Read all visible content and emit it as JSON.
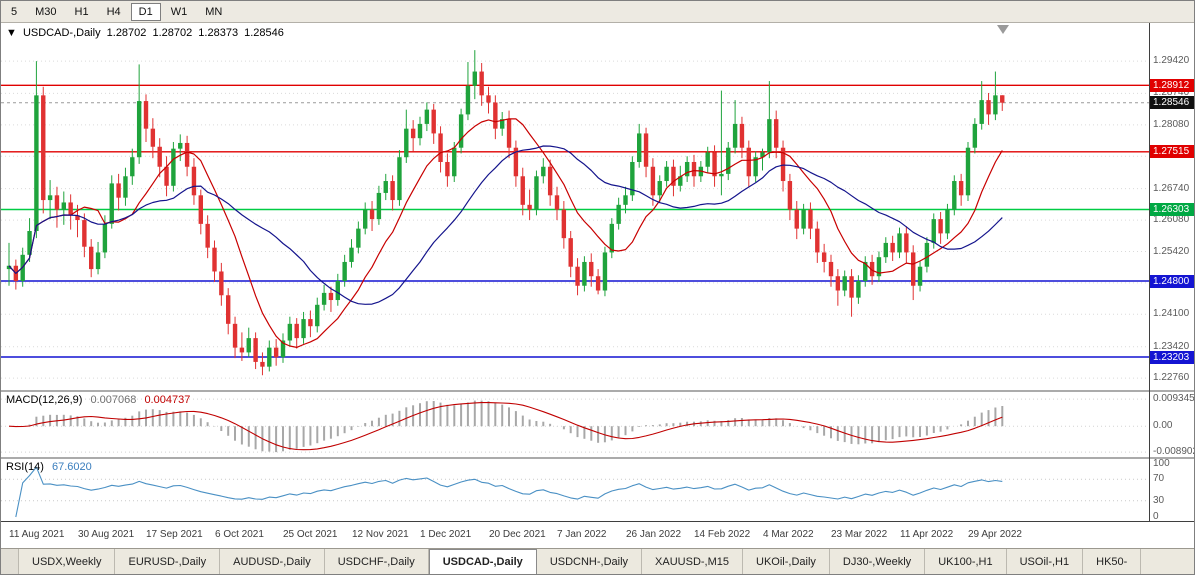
{
  "toolbar": {
    "active": "D1",
    "buttons": [
      "5",
      "M30",
      "H1",
      "H4",
      "D1",
      "W1",
      "MN"
    ]
  },
  "chart": {
    "title": {
      "marker": "▼",
      "symbol": "USDCAD-,Daily",
      "open": "1.28702",
      "high": "1.28702",
      "low": "1.28373",
      "close": "1.28546"
    },
    "colors": {
      "up": "#1FA33C",
      "down": "#E03232",
      "ma_fast": "#C80000",
      "ma_slow": "#14148C",
      "grid": "#DADADA",
      "current": "#9a9a9a"
    },
    "price_axis": [
      {
        "text": "1.29420",
        "price": 1.2942
      },
      {
        "text": "1.28740",
        "price": 1.2874
      },
      {
        "text": "1.28080",
        "price": 1.2808
      },
      {
        "text": "1.27420",
        "price": 1.2742
      },
      {
        "text": "1.26740",
        "price": 1.2674
      },
      {
        "text": "1.26080",
        "price": 1.2608
      },
      {
        "text": "1.25420",
        "price": 1.2542
      },
      {
        "text": "1.24760",
        "price": 1.2476
      },
      {
        "text": "1.24100",
        "price": 1.241
      },
      {
        "text": "1.23420",
        "price": 1.2342
      },
      {
        "text": "1.22760",
        "price": 1.2276
      }
    ],
    "badges": [
      {
        "text": "1.28912",
        "price": 1.28912,
        "color": "#E00000"
      },
      {
        "text": "1.28546",
        "price": 1.28546,
        "color": "#101010"
      },
      {
        "text": "1.27515",
        "price": 1.27515,
        "color": "#E00000"
      },
      {
        "text": "1.26303",
        "price": 1.26303,
        "color": "#00A843"
      },
      {
        "text": "1.24800",
        "price": 1.248,
        "color": "#1414D2"
      },
      {
        "text": "1.23203",
        "price": 1.23203,
        "color": "#1414D2"
      }
    ],
    "hlines": [
      {
        "price": 1.28912,
        "color": "#E00000"
      },
      {
        "price": 1.27515,
        "color": "#E00000"
      },
      {
        "price": 1.26303,
        "color": "#00CC44"
      },
      {
        "price": 1.248,
        "color": "#1414D2"
      },
      {
        "price": 1.23203,
        "color": "#1414D2"
      }
    ],
    "current_price": 1.28546,
    "dates": [
      "11 Aug 2021",
      "30 Aug 2021",
      "17 Sep 2021",
      "6 Oct 2021",
      "25 Oct 2021",
      "12 Nov 2021",
      "1 Dec 2021",
      "20 Dec 2021",
      "7 Jan 2022",
      "26 Jan 2022",
      "14 Feb 2022",
      "4 Mar 2022",
      "23 Mar 2022",
      "11 Apr 2022",
      "29 Apr 2022"
    ],
    "candles": [
      [
        1.2505,
        1.256,
        1.247,
        1.2512
      ],
      [
        1.2512,
        1.2525,
        1.2462,
        1.248
      ],
      [
        1.248,
        1.255,
        1.2468,
        1.2535
      ],
      [
        1.2535,
        1.2612,
        1.252,
        1.2585
      ],
      [
        1.2585,
        1.2942,
        1.257,
        1.287
      ],
      [
        1.287,
        1.2888,
        1.2622,
        1.265
      ],
      [
        1.265,
        1.2692,
        1.261,
        1.266
      ],
      [
        1.266,
        1.2678,
        1.2592,
        1.263
      ],
      [
        1.263,
        1.2668,
        1.2598,
        1.2645
      ],
      [
        1.2645,
        1.2662,
        1.2588,
        1.2618
      ],
      [
        1.2618,
        1.264,
        1.2572,
        1.2608
      ],
      [
        1.2608,
        1.2622,
        1.253,
        1.2552
      ],
      [
        1.2552,
        1.2568,
        1.2488,
        1.2505
      ],
      [
        1.2505,
        1.2562,
        1.2494,
        1.254
      ],
      [
        1.254,
        1.2618,
        1.2528,
        1.26
      ],
      [
        1.26,
        1.2702,
        1.259,
        1.2685
      ],
      [
        1.2685,
        1.2705,
        1.2628,
        1.2655
      ],
      [
        1.2655,
        1.2718,
        1.2638,
        1.27
      ],
      [
        1.27,
        1.2758,
        1.2682,
        1.274
      ],
      [
        1.274,
        1.2935,
        1.2726,
        1.2858
      ],
      [
        1.2858,
        1.2872,
        1.2772,
        1.28
      ],
      [
        1.28,
        1.2822,
        1.2738,
        1.2762
      ],
      [
        1.2762,
        1.278,
        1.2698,
        1.272
      ],
      [
        1.272,
        1.2742,
        1.2658,
        1.268
      ],
      [
        1.268,
        1.2772,
        1.2668,
        1.2758
      ],
      [
        1.2758,
        1.2788,
        1.2732,
        1.277
      ],
      [
        1.277,
        1.2785,
        1.27,
        1.272
      ],
      [
        1.272,
        1.2738,
        1.264,
        1.266
      ],
      [
        1.266,
        1.2672,
        1.2578,
        1.26
      ],
      [
        1.26,
        1.2618,
        1.2528,
        1.255
      ],
      [
        1.255,
        1.2565,
        1.2478,
        1.25
      ],
      [
        1.25,
        1.2518,
        1.2428,
        1.245
      ],
      [
        1.245,
        1.2465,
        1.2368,
        1.239
      ],
      [
        1.239,
        1.2405,
        1.2318,
        1.234
      ],
      [
        1.234,
        1.2372,
        1.2312,
        1.233
      ],
      [
        1.233,
        1.2382,
        1.232,
        1.236
      ],
      [
        1.236,
        1.2372,
        1.2295,
        1.231
      ],
      [
        1.231,
        1.233,
        1.2282,
        1.23
      ],
      [
        1.23,
        1.2355,
        1.229,
        1.234
      ],
      [
        1.234,
        1.2358,
        1.2302,
        1.232
      ],
      [
        1.232,
        1.237,
        1.2308,
        1.2355
      ],
      [
        1.2355,
        1.2405,
        1.2342,
        1.239
      ],
      [
        1.239,
        1.2402,
        1.2338,
        1.236
      ],
      [
        1.236,
        1.2415,
        1.2348,
        1.24
      ],
      [
        1.24,
        1.2418,
        1.2362,
        1.2385
      ],
      [
        1.2385,
        1.2445,
        1.2372,
        1.243
      ],
      [
        1.243,
        1.2472,
        1.2418,
        1.2455
      ],
      [
        1.2455,
        1.2468,
        1.2415,
        1.244
      ],
      [
        1.244,
        1.2495,
        1.2428,
        1.248
      ],
      [
        1.248,
        1.2535,
        1.2468,
        1.252
      ],
      [
        1.252,
        1.2568,
        1.2508,
        1.255
      ],
      [
        1.255,
        1.2605,
        1.2538,
        1.259
      ],
      [
        1.259,
        1.2645,
        1.2578,
        1.263
      ],
      [
        1.263,
        1.2648,
        1.2585,
        1.261
      ],
      [
        1.261,
        1.268,
        1.2598,
        1.2665
      ],
      [
        1.2665,
        1.2705,
        1.265,
        1.269
      ],
      [
        1.269,
        1.2702,
        1.2628,
        1.265
      ],
      [
        1.265,
        1.2755,
        1.2638,
        1.274
      ],
      [
        1.274,
        1.284,
        1.2728,
        1.28
      ],
      [
        1.28,
        1.2818,
        1.2752,
        1.278
      ],
      [
        1.278,
        1.2825,
        1.2765,
        1.281
      ],
      [
        1.281,
        1.2855,
        1.2795,
        1.284
      ],
      [
        1.284,
        1.2852,
        1.2768,
        1.279
      ],
      [
        1.279,
        1.2805,
        1.2708,
        1.273
      ],
      [
        1.273,
        1.2748,
        1.2678,
        1.27
      ],
      [
        1.27,
        1.2772,
        1.2688,
        1.276
      ],
      [
        1.276,
        1.2842,
        1.2748,
        1.283
      ],
      [
        1.283,
        1.294,
        1.2818,
        1.289
      ],
      [
        1.289,
        1.2965,
        1.2862,
        1.292
      ],
      [
        1.292,
        1.2938,
        1.2848,
        1.287
      ],
      [
        1.287,
        1.2888,
        1.2832,
        1.2855
      ],
      [
        1.2855,
        1.287,
        1.2778,
        1.28
      ],
      [
        1.28,
        1.2835,
        1.2785,
        1.282
      ],
      [
        1.282,
        1.2838,
        1.2738,
        1.276
      ],
      [
        1.276,
        1.2775,
        1.2678,
        1.27
      ],
      [
        1.27,
        1.2718,
        1.2618,
        1.264
      ],
      [
        1.264,
        1.2672,
        1.2608,
        1.263
      ],
      [
        1.263,
        1.2712,
        1.2618,
        1.27
      ],
      [
        1.27,
        1.2738,
        1.2685,
        1.272
      ],
      [
        1.272,
        1.2735,
        1.2638,
        1.266
      ],
      [
        1.266,
        1.2678,
        1.2608,
        1.263
      ],
      [
        1.263,
        1.2648,
        1.2548,
        1.257
      ],
      [
        1.257,
        1.2585,
        1.2488,
        1.251
      ],
      [
        1.251,
        1.2528,
        1.245,
        1.247
      ],
      [
        1.247,
        1.2532,
        1.2458,
        1.252
      ],
      [
        1.252,
        1.2538,
        1.2468,
        1.249
      ],
      [
        1.249,
        1.2505,
        1.2452,
        1.246
      ],
      [
        1.246,
        1.2552,
        1.2448,
        1.254
      ],
      [
        1.254,
        1.2612,
        1.2528,
        1.26
      ],
      [
        1.26,
        1.2655,
        1.2588,
        1.264
      ],
      [
        1.264,
        1.2678,
        1.2622,
        1.266
      ],
      [
        1.266,
        1.2742,
        1.2648,
        1.273
      ],
      [
        1.273,
        1.281,
        1.2718,
        1.279
      ],
      [
        1.279,
        1.2802,
        1.2698,
        1.272
      ],
      [
        1.272,
        1.2738,
        1.2638,
        1.266
      ],
      [
        1.266,
        1.2702,
        1.2645,
        1.269
      ],
      [
        1.269,
        1.2732,
        1.2678,
        1.272
      ],
      [
        1.272,
        1.2735,
        1.2658,
        1.268
      ],
      [
        1.268,
        1.2722,
        1.2668,
        1.27
      ],
      [
        1.27,
        1.2742,
        1.2688,
        1.273
      ],
      [
        1.273,
        1.2745,
        1.2678,
        1.27
      ],
      [
        1.27,
        1.2732,
        1.2688,
        1.272
      ],
      [
        1.272,
        1.2762,
        1.2708,
        1.275
      ],
      [
        1.275,
        1.2765,
        1.2678,
        1.27
      ],
      [
        1.27,
        1.288,
        1.266,
        1.2705
      ],
      [
        1.2705,
        1.2772,
        1.2692,
        1.276
      ],
      [
        1.276,
        1.286,
        1.2748,
        1.281
      ],
      [
        1.281,
        1.2825,
        1.2738,
        1.276
      ],
      [
        1.276,
        1.2775,
        1.2678,
        1.27
      ],
      [
        1.27,
        1.2752,
        1.2688,
        1.274
      ],
      [
        1.274,
        1.2758,
        1.2712,
        1.275
      ],
      [
        1.275,
        1.29,
        1.2738,
        1.282
      ],
      [
        1.282,
        1.2838,
        1.2738,
        1.276
      ],
      [
        1.276,
        1.2775,
        1.2668,
        1.269
      ],
      [
        1.269,
        1.2705,
        1.2608,
        1.263
      ],
      [
        1.263,
        1.2648,
        1.2568,
        1.259
      ],
      [
        1.259,
        1.2642,
        1.2578,
        1.263
      ],
      [
        1.263,
        1.2645,
        1.2568,
        1.259
      ],
      [
        1.259,
        1.2605,
        1.2518,
        1.254
      ],
      [
        1.254,
        1.2558,
        1.2498,
        1.252
      ],
      [
        1.252,
        1.2535,
        1.2468,
        1.249
      ],
      [
        1.249,
        1.2505,
        1.2428,
        1.246
      ],
      [
        1.246,
        1.2502,
        1.2448,
        1.249
      ],
      [
        1.249,
        1.2505,
        1.2405,
        1.2445
      ],
      [
        1.2445,
        1.2492,
        1.2432,
        1.248
      ],
      [
        1.248,
        1.2532,
        1.2468,
        1.252
      ],
      [
        1.252,
        1.2535,
        1.2472,
        1.249
      ],
      [
        1.249,
        1.2542,
        1.2478,
        1.253
      ],
      [
        1.253,
        1.2572,
        1.2518,
        1.256
      ],
      [
        1.256,
        1.2575,
        1.2522,
        1.254
      ],
      [
        1.254,
        1.2592,
        1.2528,
        1.258
      ],
      [
        1.258,
        1.2595,
        1.2518,
        1.254
      ],
      [
        1.254,
        1.2555,
        1.244,
        1.247
      ],
      [
        1.247,
        1.2522,
        1.2458,
        1.251
      ],
      [
        1.251,
        1.2572,
        1.2498,
        1.256
      ],
      [
        1.256,
        1.2622,
        1.2548,
        1.261
      ],
      [
        1.261,
        1.2625,
        1.2558,
        1.258
      ],
      [
        1.258,
        1.2642,
        1.2568,
        1.263
      ],
      [
        1.263,
        1.2702,
        1.2618,
        1.269
      ],
      [
        1.269,
        1.2705,
        1.2638,
        1.266
      ],
      [
        1.266,
        1.2772,
        1.2648,
        1.276
      ],
      [
        1.276,
        1.2822,
        1.2748,
        1.281
      ],
      [
        1.281,
        1.29,
        1.2798,
        1.286
      ],
      [
        1.286,
        1.2875,
        1.2808,
        1.283
      ],
      [
        1.283,
        1.292,
        1.2818,
        1.287
      ],
      [
        1.28702,
        1.28702,
        1.28373,
        1.28546
      ]
    ]
  },
  "macd": {
    "label": "MACD(12,26,9)",
    "main_value": "0.007068",
    "signal_value": "0.004737",
    "axis": [
      {
        "text": "0.009345",
        "value": 0.009345
      },
      {
        "text": "0.00",
        "value": 0
      },
      {
        "text": "-0.008902",
        "value": -0.008902
      }
    ],
    "histogram_color": "#A8A8A8",
    "signal_color": "#C00000"
  },
  "rsi": {
    "label": "RSI(14)",
    "value": "67.6020",
    "axis": [
      {
        "text": "100",
        "value": 100
      },
      {
        "text": "70",
        "value": 70
      },
      {
        "text": "30",
        "value": 30
      },
      {
        "text": "0",
        "value": 0
      }
    ],
    "levels": [
      70,
      30
    ],
    "line_color": "#4A90C4"
  },
  "tabs": {
    "active_index": 4,
    "items": [
      "USDX,Weekly",
      "EURUSD-,Daily",
      "AUDUSD-,Daily",
      "USDCHF-,Daily",
      "USDCAD-,Daily",
      "USDCNH-,Daily",
      "XAUUSD-,M15",
      "UKOil-,Daily",
      "DJ30-,Weekly",
      "UK100-,H1",
      "USOil-,H1",
      "HK50-"
    ]
  }
}
